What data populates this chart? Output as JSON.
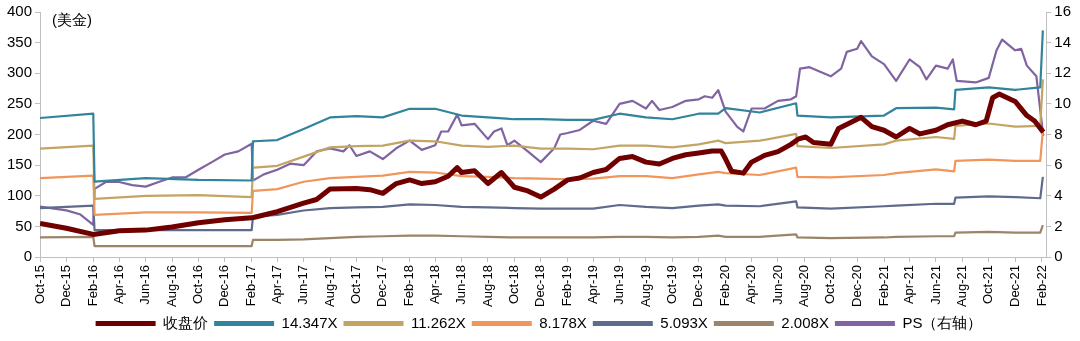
{
  "chart_data": {
    "type": "line",
    "ylabel": "(美金)",
    "xlim": [
      "2015-10-01",
      "2022-02-11"
    ],
    "xticks": [
      {
        "value": "2015-10-01",
        "label": "Oct-15"
      },
      {
        "value": "2015-12-01",
        "label": "Dec-15"
      },
      {
        "value": "2016-02-01",
        "label": "Feb-16"
      },
      {
        "value": "2016-04-01",
        "label": "Apr-16"
      },
      {
        "value": "2016-06-01",
        "label": "Jun-16"
      },
      {
        "value": "2016-08-01",
        "label": "Aug-16"
      },
      {
        "value": "2016-10-01",
        "label": "Oct-16"
      },
      {
        "value": "2016-12-01",
        "label": "Dec-16"
      },
      {
        "value": "2017-02-01",
        "label": "Feb-17"
      },
      {
        "value": "2017-04-01",
        "label": "Apr-17"
      },
      {
        "value": "2017-06-01",
        "label": "Jun-17"
      },
      {
        "value": "2017-08-01",
        "label": "Aug-17"
      },
      {
        "value": "2017-10-01",
        "label": "Oct-17"
      },
      {
        "value": "2017-12-01",
        "label": "Dec-17"
      },
      {
        "value": "2018-02-01",
        "label": "Feb-18"
      },
      {
        "value": "2018-04-01",
        "label": "Apr-18"
      },
      {
        "value": "2018-06-01",
        "label": "Jun-18"
      },
      {
        "value": "2018-08-01",
        "label": "Aug-18"
      },
      {
        "value": "2018-10-01",
        "label": "Oct-18"
      },
      {
        "value": "2018-12-01",
        "label": "Dec-18"
      },
      {
        "value": "2019-02-01",
        "label": "Feb-19"
      },
      {
        "value": "2019-04-01",
        "label": "Apr-19"
      },
      {
        "value": "2019-06-01",
        "label": "Jun-19"
      },
      {
        "value": "2019-08-01",
        "label": "Aug-19"
      },
      {
        "value": "2019-10-01",
        "label": "Oct-19"
      },
      {
        "value": "2019-12-01",
        "label": "Dec-19"
      },
      {
        "value": "2020-02-01",
        "label": "Feb-20"
      },
      {
        "value": "2020-04-01",
        "label": "Apr-20"
      },
      {
        "value": "2020-06-01",
        "label": "Jun-20"
      },
      {
        "value": "2020-08-01",
        "label": "Aug-20"
      },
      {
        "value": "2020-10-01",
        "label": "Oct-20"
      },
      {
        "value": "2020-12-01",
        "label": "Dec-20"
      },
      {
        "value": "2021-02-01",
        "label": "Feb-21"
      },
      {
        "value": "2021-04-01",
        "label": "Apr-21"
      },
      {
        "value": "2021-06-01",
        "label": "Jun-21"
      },
      {
        "value": "2021-08-01",
        "label": "Aug-21"
      },
      {
        "value": "2021-10-01",
        "label": "Oct-21"
      },
      {
        "value": "2021-12-01",
        "label": "Dec-21"
      },
      {
        "value": "2022-02-01",
        "label": "Feb-22"
      }
    ],
    "ylim": [
      0,
      400
    ],
    "yticks": [
      0,
      50,
      100,
      150,
      200,
      250,
      300,
      350,
      400
    ],
    "y2lim": [
      0,
      16
    ],
    "y2ticks": [
      0,
      2,
      4,
      6,
      8,
      10,
      12,
      14,
      16
    ],
    "grid": false,
    "legend": "bottom",
    "x": [
      "2015-10-01",
      "2016-02-01",
      "2016-02-04",
      "2016-06-01",
      "2016-10-01",
      "2017-02-01",
      "2017-02-04",
      "2017-04-01",
      "2017-06-01",
      "2017-08-01",
      "2017-10-01",
      "2017-12-01",
      "2018-02-01",
      "2018-04-01",
      "2018-06-01",
      "2018-08-01",
      "2018-10-01",
      "2018-12-01",
      "2019-02-01",
      "2019-04-01",
      "2019-06-01",
      "2019-08-01",
      "2019-10-01",
      "2019-12-01",
      "2020-01-15",
      "2020-02-01",
      "2020-04-20",
      "2020-07-13",
      "2020-07-16",
      "2020-10-01",
      "2021-02-01",
      "2021-03-01",
      "2021-06-01",
      "2021-07-13",
      "2021-07-16",
      "2021-10-01",
      "2021-12-01",
      "2022-01-28",
      "2022-02-03"
    ],
    "series": [
      {
        "name": "收盘价",
        "color": "#700000",
        "x": [
          "2015-10-01",
          "2015-12-01",
          "2016-02-01",
          "2016-04-01",
          "2016-06-01",
          "2016-08-01",
          "2016-10-01",
          "2016-12-01",
          "2017-02-01",
          "2017-04-01",
          "2017-06-01",
          "2017-07-01",
          "2017-08-01",
          "2017-10-01",
          "2017-11-01",
          "2017-12-01",
          "2018-01-01",
          "2018-02-01",
          "2018-03-01",
          "2018-04-01",
          "2018-05-01",
          "2018-05-22",
          "2018-06-01",
          "2018-07-01",
          "2018-08-01",
          "2018-09-01",
          "2018-10-01",
          "2018-11-01",
          "2018-12-01",
          "2019-01-01",
          "2019-02-01",
          "2019-03-01",
          "2019-04-01",
          "2019-05-01",
          "2019-06-01",
          "2019-07-01",
          "2019-08-01",
          "2019-09-01",
          "2019-10-01",
          "2019-11-01",
          "2019-12-01",
          "2020-01-01",
          "2020-01-22",
          "2020-02-01",
          "2020-02-15",
          "2020-03-13",
          "2020-04-01",
          "2020-05-01",
          "2020-06-01",
          "2020-07-01",
          "2020-07-19",
          "2020-08-04",
          "2020-08-22",
          "2020-10-01",
          "2020-10-19",
          "2020-12-01",
          "2020-12-10",
          "2021-01-04",
          "2021-02-01",
          "2021-03-01",
          "2021-04-01",
          "2021-04-25",
          "2021-06-01",
          "2021-06-28",
          "2021-08-01",
          "2021-09-01",
          "2021-09-25",
          "2021-10-10",
          "2021-10-25",
          "2021-12-01",
          "2021-12-28",
          "2022-01-15",
          "2022-02-04"
        ],
        "values": [
          55,
          47,
          37,
          43,
          44,
          49,
          56,
          61,
          64,
          74,
          88,
          94,
          111,
          112,
          110,
          104,
          120,
          126,
          120,
          123,
          132,
          146,
          138,
          141,
          120,
          138,
          114,
          108,
          98,
          111,
          126,
          129,
          138,
          143,
          161,
          164,
          155,
          152,
          161,
          167,
          170,
          173,
          173,
          160,
          140,
          137,
          155,
          166,
          172,
          184,
          193,
          196,
          187,
          184,
          210,
          225,
          228,
          213,
          207,
          196,
          210,
          201,
          207,
          216,
          222,
          216,
          222,
          260,
          266,
          254,
          231,
          222,
          204
        ]
      },
      {
        "name": "14.347X",
        "color": "#31849b",
        "values": [
          227,
          234,
          123,
          129,
          126,
          125,
          189,
          191,
          209,
          228,
          230,
          228,
          242,
          242,
          231,
          228,
          225,
          225,
          224,
          224,
          234,
          228,
          225,
          234,
          234,
          243,
          236,
          251,
          231,
          228,
          231,
          243,
          244,
          241,
          273,
          277,
          273,
          277,
          370
        ]
      },
      {
        "name": "11.262X",
        "color": "#c4a463",
        "values": [
          177,
          182,
          95,
          100,
          101,
          98,
          146,
          149,
          164,
          179,
          181,
          182,
          190,
          189,
          182,
          180,
          182,
          177,
          177,
          176,
          182,
          182,
          179,
          184,
          190,
          186,
          190,
          201,
          181,
          178,
          184,
          190,
          196,
          193,
          214,
          218,
          213,
          214,
          290
        ]
      },
      {
        "name": "8.178X",
        "color": "#f0965a",
        "values": [
          129,
          133,
          69,
          73,
          73,
          72,
          108,
          111,
          123,
          129,
          131,
          133,
          139,
          138,
          132,
          131,
          129,
          128,
          127,
          128,
          132,
          132,
          129,
          135,
          139,
          137,
          134,
          146,
          131,
          130,
          134,
          137,
          143,
          140,
          157,
          159,
          157,
          157,
          207
        ]
      },
      {
        "name": "5.093X",
        "color": "#5f6b8c",
        "values": [
          80,
          84,
          44,
          44,
          44,
          44,
          66,
          69,
          76,
          80,
          81,
          82,
          86,
          85,
          82,
          81,
          80,
          79,
          79,
          79,
          85,
          82,
          80,
          84,
          86,
          84,
          83,
          91,
          81,
          79,
          83,
          84,
          87,
          87,
          97,
          99,
          98,
          96,
          131
        ]
      },
      {
        "name": "2.008X",
        "color": "#9c8469",
        "values": [
          32,
          33,
          18,
          18,
          18,
          18,
          28,
          28,
          29,
          31,
          33,
          34,
          35,
          35,
          34,
          33,
          32,
          32,
          32,
          32,
          33,
          33,
          32,
          33,
          35,
          33,
          33,
          37,
          32,
          31,
          32,
          33,
          34,
          34,
          40,
          41,
          40,
          40,
          52
        ]
      },
      {
        "name": "PS（右轴）",
        "color": "#8064a2",
        "axis": "y2",
        "x": [
          "2015-10-01",
          "2015-12-01",
          "2016-01-01",
          "2016-02-01",
          "2016-02-04",
          "2016-03-01",
          "2016-04-01",
          "2016-05-01",
          "2016-06-01",
          "2016-07-01",
          "2016-08-01",
          "2016-09-01",
          "2016-10-01",
          "2016-11-01",
          "2016-12-01",
          "2017-01-01",
          "2017-02-01",
          "2017-02-04",
          "2017-03-01",
          "2017-04-01",
          "2017-05-01",
          "2017-06-01",
          "2017-07-01",
          "2017-08-01",
          "2017-09-01",
          "2017-09-15",
          "2017-10-01",
          "2017-11-01",
          "2017-12-01",
          "2018-01-01",
          "2018-02-01",
          "2018-03-01",
          "2018-04-01",
          "2018-04-15",
          "2018-05-01",
          "2018-05-22",
          "2018-06-01",
          "2018-07-01",
          "2018-08-01",
          "2018-08-15",
          "2018-09-01",
          "2018-09-15",
          "2018-10-01",
          "2018-11-01",
          "2018-12-01",
          "2019-01-01",
          "2019-01-15",
          "2019-02-01",
          "2019-03-01",
          "2019-04-01",
          "2019-05-01",
          "2019-06-01",
          "2019-07-01",
          "2019-08-01",
          "2019-08-15",
          "2019-09-01",
          "2019-10-01",
          "2019-11-01",
          "2019-12-01",
          "2019-12-15",
          "2020-01-01",
          "2020-01-15",
          "2020-02-01",
          "2020-02-28",
          "2020-03-13",
          "2020-04-01",
          "2020-05-01",
          "2020-06-01",
          "2020-07-01",
          "2020-07-13",
          "2020-07-22",
          "2020-08-13",
          "2020-10-01",
          "2020-10-25",
          "2020-11-07",
          "2020-12-01",
          "2020-12-10",
          "2021-01-04",
          "2021-02-01",
          "2021-03-01",
          "2021-04-01",
          "2021-04-25",
          "2021-05-10",
          "2021-06-01",
          "2021-06-28",
          "2021-07-10",
          "2021-07-19",
          "2021-09-01",
          "2021-10-01",
          "2021-10-19",
          "2021-11-01",
          "2021-12-01",
          "2021-12-15",
          "2021-12-28",
          "2022-01-19",
          "2022-02-04"
        ],
        "values": [
          3.3,
          3.05,
          2.8,
          2.1,
          4.45,
          4.9,
          4.9,
          4.7,
          4.6,
          4.9,
          5.2,
          5.2,
          5.7,
          6.2,
          6.7,
          6.9,
          7.4,
          5.0,
          5.4,
          5.7,
          6.1,
          6.0,
          6.9,
          7.1,
          6.9,
          7.3,
          6.6,
          6.9,
          6.4,
          7.1,
          7.6,
          7.0,
          7.3,
          8.2,
          8.2,
          9.3,
          8.6,
          8.7,
          7.7,
          8.2,
          8.4,
          7.3,
          7.6,
          6.9,
          6.2,
          7.1,
          8.0,
          8.1,
          8.3,
          8.9,
          8.7,
          10.0,
          10.2,
          9.7,
          10.2,
          9.6,
          9.8,
          10.2,
          10.3,
          10.5,
          10.4,
          10.9,
          9.5,
          8.5,
          8.2,
          9.7,
          9.7,
          10.2,
          10.3,
          10.5,
          12.3,
          12.4,
          11.8,
          12.3,
          13.4,
          13.6,
          14.1,
          13.1,
          12.6,
          11.5,
          12.9,
          12.4,
          11.6,
          12.5,
          12.3,
          12.9,
          11.5,
          11.4,
          11.7,
          13.5,
          14.2,
          13.5,
          13.6,
          12.5,
          11.8,
          7.9
        ]
      }
    ]
  }
}
